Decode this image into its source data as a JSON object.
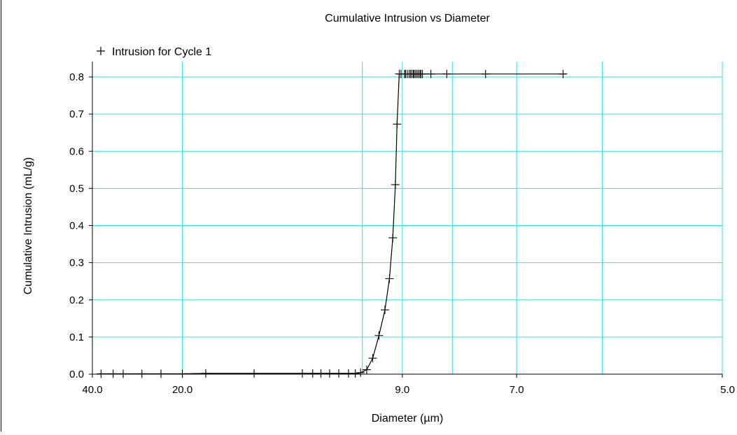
{
  "chart_data": {
    "type": "line",
    "title": "Cumulative Intrusion vs Diameter",
    "xlabel": "Diameter (µm)",
    "ylabel": "Cumulative Intrusion (mL/g)",
    "x_scale": "reciprocal",
    "xlim": [
      40.0,
      5.0
    ],
    "ylim": [
      0.0,
      0.85
    ],
    "x_ticks": [
      "40.0",
      "20.0",
      "9.0",
      "7.0",
      "5.0"
    ],
    "y_ticks": [
      "0.0",
      "0.1",
      "0.2",
      "0.3",
      "0.4",
      "0.5",
      "0.6",
      "0.7",
      "0.8"
    ],
    "x_gridlines": [
      40.0,
      20.0,
      10.0,
      9.0,
      8.0,
      7.0,
      6.0,
      5.0
    ],
    "grid": true,
    "grid_color": "#33e0e0",
    "line_color": "#000000",
    "legend_position": "top-left",
    "series": [
      {
        "name": "Intrusion for Cycle 1",
        "marker": "plus",
        "x": [
          36.5,
          32.5,
          29.8,
          25.8,
          22.7,
          20.0,
          17.7,
          14.3,
          12.0,
          11.6,
          11.3,
          11.0,
          10.7,
          10.4,
          10.2,
          10.05,
          9.88,
          9.72,
          9.56,
          9.41,
          9.3,
          9.22,
          9.16,
          9.12,
          9.07,
          9.03,
          8.95,
          8.93,
          8.89,
          8.85,
          8.82,
          8.79,
          8.76,
          8.74,
          8.71,
          8.68,
          8.65,
          8.62,
          8.6,
          8.57,
          8.4,
          8.1,
          7.45,
          6.42
        ],
        "y": [
          0.001,
          0.001,
          0.001,
          0.001,
          0.001,
          0.001,
          0.002,
          0.002,
          0.002,
          0.002,
          0.002,
          0.002,
          0.002,
          0.002,
          0.002,
          0.004,
          0.012,
          0.043,
          0.104,
          0.173,
          0.257,
          0.367,
          0.51,
          0.673,
          0.808,
          0.808,
          0.808,
          0.808,
          0.808,
          0.808,
          0.808,
          0.808,
          0.808,
          0.808,
          0.808,
          0.808,
          0.808,
          0.808,
          0.808,
          0.808,
          0.808,
          0.808,
          0.808,
          0.808
        ]
      }
    ]
  }
}
